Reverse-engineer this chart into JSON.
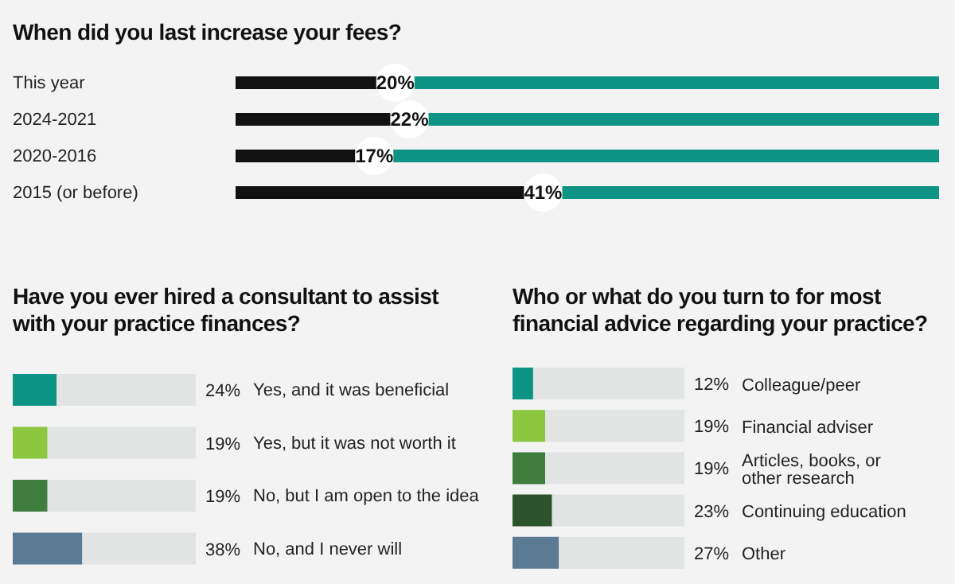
{
  "chart_data": [
    {
      "type": "bar",
      "orientation": "horizontal",
      "title": "When did you last increase your fees?",
      "categories": [
        "This year",
        "2024-2021",
        "2020-2016",
        "2015 (or before)"
      ],
      "values": [
        20,
        22,
        17,
        41
      ],
      "color": "#111111",
      "xlim": [
        0,
        100
      ],
      "data_labels": true,
      "value_labels": [
        "20%",
        "22%",
        "17%",
        "41%"
      ]
    },
    {
      "type": "bar",
      "orientation": "horizontal",
      "title": "Have you ever hired a consultant to assist with your practice finances?",
      "categories": [
        "Yes, and it was beneficial",
        "Yes, but it was not worth it",
        "No, but I am open to the idea",
        "No, and I never will"
      ],
      "values": [
        24,
        19,
        19,
        38
      ],
      "colors": [
        "#0e9484",
        "#8dc63f",
        "#3e7d3e",
        "#5b7a94"
      ],
      "xlim": [
        0,
        100
      ],
      "data_labels": true,
      "value_labels": [
        "24%",
        "19%",
        "19%",
        "38%"
      ]
    },
    {
      "type": "bar",
      "orientation": "horizontal",
      "title": "Who or what do you turn to for most financial advice regarding your practice?",
      "categories": [
        "Colleague/peer",
        "Financial adviser",
        "Articles, books, or other research",
        "Continuing education",
        "Other"
      ],
      "values": [
        12,
        19,
        19,
        23,
        27
      ],
      "colors": [
        "#0e9484",
        "#8dc63f",
        "#3e7d3e",
        "#2c532c",
        "#5b7a94"
      ],
      "xlim": [
        0,
        100
      ],
      "data_labels": true,
      "value_labels": [
        "12%",
        "19%",
        "19%",
        "23%",
        "27%"
      ]
    }
  ]
}
